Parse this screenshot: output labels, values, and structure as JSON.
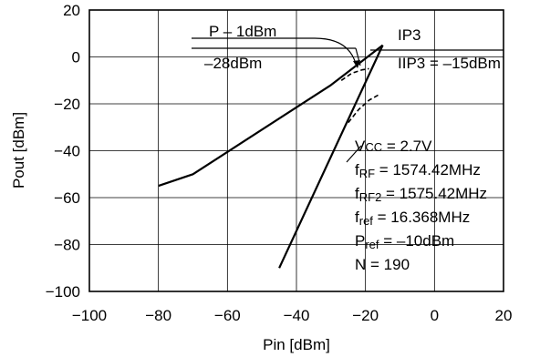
{
  "chart_data": {
    "type": "line",
    "title": "",
    "xlabel": "Pin [dBm]",
    "ylabel": "Pout [dBm]",
    "xlim": [
      -100,
      20
    ],
    "ylim": [
      -100,
      20
    ],
    "grid": true,
    "x_ticks": [
      -100,
      -80,
      -60,
      -40,
      -20,
      0,
      20
    ],
    "x_tick_labels": [
      "−100",
      "−80",
      "−60",
      "−40",
      "−20",
      "0",
      "20"
    ],
    "y_ticks": [
      -100,
      -80,
      -60,
      -40,
      -20,
      0,
      20
    ],
    "y_tick_labels": [
      "−100",
      "−80",
      "−60",
      "−40",
      "−20",
      "0",
      "20"
    ],
    "series": [
      {
        "style": "solid",
        "x": [
          -80,
          -70,
          -30,
          -15
        ],
        "y": [
          -55,
          -50,
          -12,
          5
        ]
      },
      {
        "style": "solid",
        "x": [
          -45,
          -15
        ],
        "y": [
          -90,
          5
        ]
      },
      {
        "style": "dashed",
        "x": [
          -27,
          -24,
          -21,
          -19
        ],
        "y": [
          -10,
          -7,
          -5.5,
          -5
        ]
      },
      {
        "style": "dashed",
        "x": [
          -25,
          -22,
          -19,
          -16
        ],
        "y": [
          -28,
          -22.5,
          -18.5,
          -16
        ]
      }
    ],
    "annotations": {
      "p1db": {
        "line1": "P – 1dBm",
        "line2": "–28dBm"
      },
      "ip3": {
        "line1": "IP3",
        "line2": "IIP3 = –15dBm"
      },
      "conditions": [
        {
          "main": "V",
          "sub": "CC",
          "rest": " = 2.7V"
        },
        {
          "main": "f",
          "sub": "RF",
          "rest": " = 1574.42MHz"
        },
        {
          "main": "f",
          "sub": "RF2",
          "rest": " = 1575.42MHz"
        },
        {
          "main": "f",
          "sub": "ref",
          "rest": " = 16.368MHz"
        },
        {
          "main": "P",
          "sub": "ref",
          "rest": " = –10dBm"
        },
        {
          "main": "N",
          "sub": "",
          "rest": " = 190"
        }
      ]
    }
  }
}
